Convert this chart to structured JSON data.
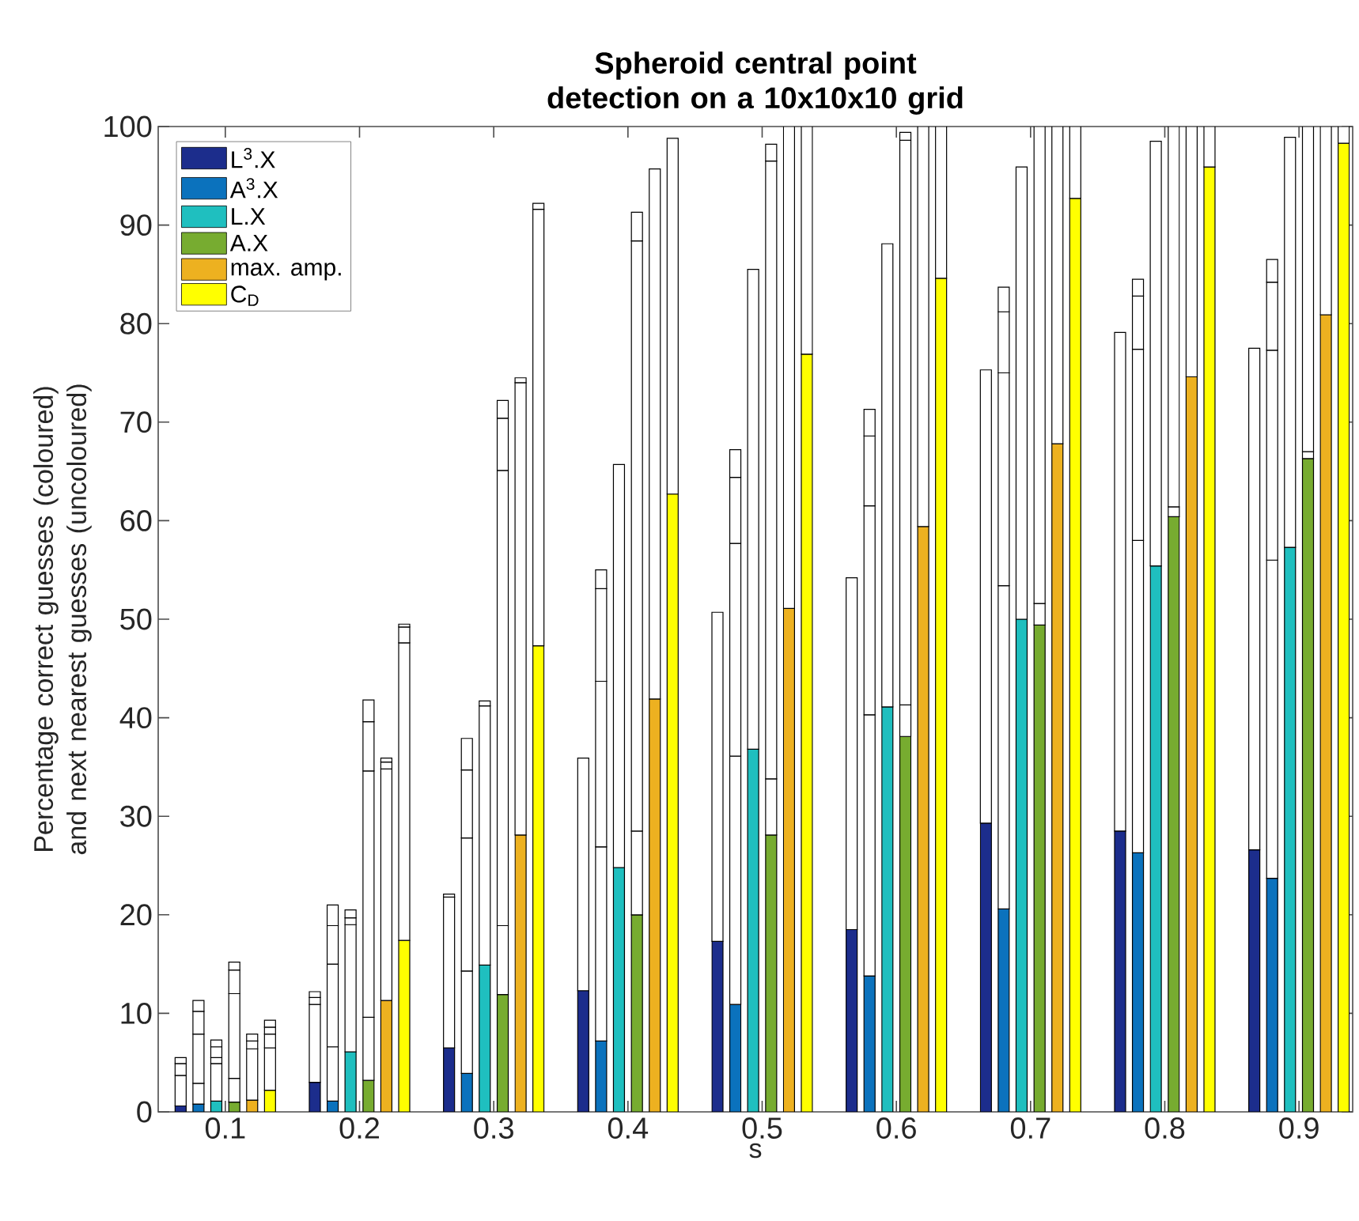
{
  "chart_data": {
    "type": "bar",
    "stacked": true,
    "title": "Spheroid central point detection on a 10x10x10 grid",
    "xlabel": "s",
    "ylabel": "Percentage correct guesses (coloured) and next nearest guesses (uncoloured)",
    "xlim": [
      0.05,
      0.94
    ],
    "xticks": [
      0.1,
      0.2,
      0.3,
      0.4,
      0.5,
      0.6,
      0.7,
      0.8,
      0.9
    ],
    "ylim": [
      0,
      100
    ],
    "yticks": [
      0,
      10,
      20,
      30,
      40,
      50,
      60,
      70,
      80,
      90,
      100
    ],
    "legend": "top left",
    "x": [
      0.0667,
      0.08,
      0.0933,
      0.1067,
      0.12,
      0.1333,
      0.1667,
      0.18,
      0.1933,
      0.2067,
      0.22,
      0.2333,
      0.2667,
      0.28,
      0.2933,
      0.3067,
      0.32,
      0.3333,
      0.3667,
      0.38,
      0.3933,
      0.4067,
      0.42,
      0.4333,
      0.4667,
      0.48,
      0.4933,
      0.5067,
      0.52,
      0.5333,
      0.5667,
      0.58,
      0.5933,
      0.6067,
      0.62,
      0.6333,
      0.6667,
      0.68,
      0.6933,
      0.7067,
      0.72,
      0.7333,
      0.7667,
      0.78,
      0.7933,
      0.8067,
      0.82,
      0.8333,
      0.8667,
      0.88,
      0.8933,
      0.9067,
      0.92,
      0.9333
    ],
    "series": [
      {
        "name": "L$^{3}$.X",
        "color": "#1c2d8c",
        "values": [
          0.6,
          null,
          null,
          null,
          null,
          null,
          3.0,
          null,
          null,
          null,
          null,
          null,
          6.5,
          null,
          null,
          null,
          null,
          null,
          12.3,
          null,
          null,
          null,
          null,
          null,
          17.3,
          null,
          null,
          null,
          null,
          null,
          18.5,
          null,
          null,
          null,
          null,
          null,
          29.3,
          null,
          null,
          null,
          null,
          null,
          28.5,
          null,
          null,
          null,
          null,
          null,
          26.6,
          null,
          null,
          null,
          null,
          null
        ]
      },
      {
        "name": "A$^{3}$.X",
        "color": "#0b72bd",
        "values": [
          null,
          0.8,
          null,
          null,
          null,
          null,
          null,
          1.1,
          null,
          null,
          null,
          null,
          null,
          3.9,
          null,
          null,
          null,
          null,
          null,
          7.2,
          null,
          null,
          null,
          null,
          null,
          10.9,
          null,
          null,
          null,
          null,
          null,
          13.8,
          null,
          null,
          null,
          null,
          null,
          20.6,
          null,
          null,
          null,
          null,
          null,
          26.3,
          null,
          null,
          null,
          null,
          null,
          23.7,
          null,
          null,
          null,
          null
        ]
      },
      {
        "name": "L.X",
        "color": "#1fbfbf",
        "values": [
          null,
          null,
          1.1,
          null,
          null,
          null,
          null,
          null,
          6.1,
          null,
          null,
          null,
          null,
          null,
          14.9,
          null,
          null,
          null,
          null,
          null,
          24.8,
          null,
          null,
          null,
          null,
          null,
          36.8,
          null,
          null,
          null,
          null,
          null,
          41.1,
          null,
          null,
          null,
          null,
          null,
          50.0,
          null,
          null,
          null,
          null,
          null,
          55.4,
          null,
          null,
          null,
          null,
          null,
          57.3,
          null,
          null,
          null
        ]
      },
      {
        "name": "A.X",
        "color": "#77ac30",
        "values": [
          null,
          null,
          null,
          1.0,
          null,
          null,
          null,
          null,
          null,
          3.2,
          null,
          null,
          null,
          null,
          null,
          11.9,
          null,
          null,
          null,
          null,
          null,
          20.0,
          null,
          null,
          null,
          null,
          null,
          28.1,
          null,
          null,
          null,
          null,
          null,
          38.1,
          null,
          null,
          null,
          null,
          null,
          49.4,
          null,
          null,
          null,
          null,
          null,
          60.4,
          null,
          null,
          null,
          null,
          null,
          66.3,
          null,
          null
        ]
      },
      {
        "name": "max. amp.",
        "color": "#edb120",
        "values": [
          null,
          null,
          null,
          null,
          1.2,
          null,
          null,
          null,
          null,
          null,
          11.3,
          null,
          null,
          null,
          null,
          null,
          28.1,
          null,
          null,
          null,
          null,
          null,
          41.9,
          null,
          null,
          null,
          null,
          null,
          51.1,
          null,
          null,
          null,
          null,
          null,
          59.4,
          null,
          null,
          null,
          null,
          null,
          67.8,
          null,
          null,
          null,
          null,
          null,
          74.6,
          null,
          null,
          null,
          null,
          null,
          80.9,
          null
        ]
      },
      {
        "name": "C$_{D}$",
        "color": "#ffff00",
        "values": [
          null,
          null,
          null,
          null,
          null,
          2.2,
          null,
          null,
          null,
          null,
          null,
          17.4,
          null,
          null,
          null,
          null,
          null,
          47.3,
          null,
          null,
          null,
          null,
          null,
          62.7,
          null,
          null,
          null,
          null,
          null,
          76.9,
          null,
          null,
          null,
          null,
          null,
          84.6,
          null,
          null,
          null,
          null,
          null,
          92.7,
          null,
          null,
          null,
          null,
          null,
          95.9,
          null,
          null,
          null,
          null,
          null,
          98.3
        ]
      },
      {
        "color": "#ffffff",
        "values": [
          3.1,
          2.1,
          3.8,
          2.4,
          5.2,
          4.3,
          7.9,
          5.5,
          12.9,
          6.4,
          23.5,
          30.2,
          15.3,
          10.4,
          26.3,
          7.0,
          45.9,
          44.3,
          23.6,
          19.7,
          40.9,
          8.5,
          53.8,
          36.1,
          33.4,
          25.2,
          48.7,
          5.7,
          48.9,
          23.1,
          35.7,
          26.5,
          47.0,
          3.2,
          40.6,
          15.4,
          46.0,
          32.8,
          45.9,
          2.2,
          32.2,
          7.3,
          50.6,
          31.7,
          43.1,
          1.0,
          25.4,
          4.1,
          50.9,
          32.3,
          41.6,
          0.7,
          19.1,
          1.7
        ]
      },
      {
        "color": "#ffffff",
        "values": [
          1.2,
          5.0,
          0.6,
          8.6,
          0.8,
          1.4,
          0.7,
          8.4,
          0.7,
          25.0,
          0.7,
          1.6,
          0.3,
          13.5,
          0.5,
          46.2,
          0.5,
          0.6,
          null,
          16.8,
          null,
          59.9,
          null,
          null,
          null,
          21.6,
          null,
          62.7,
          null,
          null,
          null,
          21.2,
          null,
          57.3,
          null,
          null,
          null,
          21.6,
          null,
          48.4,
          null,
          null,
          null,
          19.4,
          null,
          38.6,
          null,
          null,
          null,
          21.3,
          null,
          33.0,
          null,
          null
        ]
      },
      {
        "color": "#ffffff",
        "values": [
          0.6,
          2.3,
          1.1,
          2.4,
          0.7,
          0.7,
          0.6,
          3.9,
          0.8,
          5.0,
          0.4,
          0.3,
          null,
          6.9,
          null,
          5.3,
          null,
          null,
          null,
          9.4,
          null,
          2.9,
          null,
          null,
          null,
          6.7,
          null,
          1.7,
          null,
          null,
          null,
          7.1,
          null,
          0.8,
          null,
          null,
          null,
          6.2,
          null,
          null,
          null,
          null,
          null,
          5.4,
          null,
          null,
          null,
          null,
          null,
          6.9,
          null,
          null,
          null,
          null
        ]
      },
      {
        "color": "#ffffff",
        "values": [
          null,
          1.1,
          0.7,
          0.8,
          null,
          0.7,
          null,
          2.1,
          null,
          2.2,
          null,
          null,
          null,
          3.2,
          null,
          1.8,
          null,
          null,
          null,
          1.9,
          null,
          null,
          null,
          null,
          null,
          2.8,
          null,
          null,
          null,
          null,
          null,
          2.7,
          null,
          null,
          null,
          null,
          null,
          2.5,
          null,
          null,
          null,
          null,
          null,
          1.7,
          null,
          null,
          null,
          null,
          null,
          2.3,
          null,
          null,
          null,
          null
        ]
      }
    ]
  }
}
